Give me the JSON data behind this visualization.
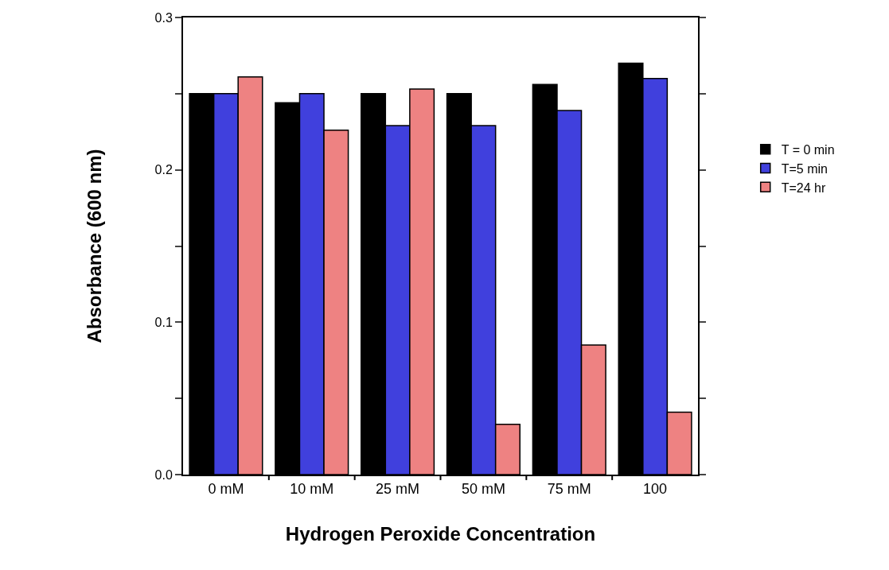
{
  "chart_data": {
    "type": "bar",
    "xlabel": "Hydrogen Peroxide Concentration",
    "ylabel": "Absorbance (600 nm)",
    "categories": [
      "0 mM",
      "10 mM",
      "25 mM",
      "50 mM",
      "75 mM",
      "100"
    ],
    "series": [
      {
        "name": "T = 0 min",
        "color": "#000000",
        "values": [
          0.25,
          0.244,
          0.25,
          0.25,
          0.256,
          0.27
        ]
      },
      {
        "name": "T=5 min",
        "color": "#4040dd",
        "values": [
          0.25,
          0.25,
          0.229,
          0.229,
          0.239,
          0.26
        ]
      },
      {
        "name": "T=24 hr",
        "color": "#ee8282",
        "values": [
          0.261,
          0.226,
          0.253,
          0.033,
          0.085,
          0.041
        ]
      }
    ],
    "ylim": [
      0,
      0.3
    ],
    "yticks": [
      {
        "value": 0,
        "label": "0.0"
      },
      {
        "value": 0.05,
        "label": null
      },
      {
        "value": 0.1,
        "label": "0.1"
      },
      {
        "value": 0.15,
        "label": null
      },
      {
        "value": 0.2,
        "label": "0.2"
      },
      {
        "value": 0.25,
        "label": null
      },
      {
        "value": 0.3,
        "label": "0.3"
      }
    ],
    "legend": "right"
  }
}
